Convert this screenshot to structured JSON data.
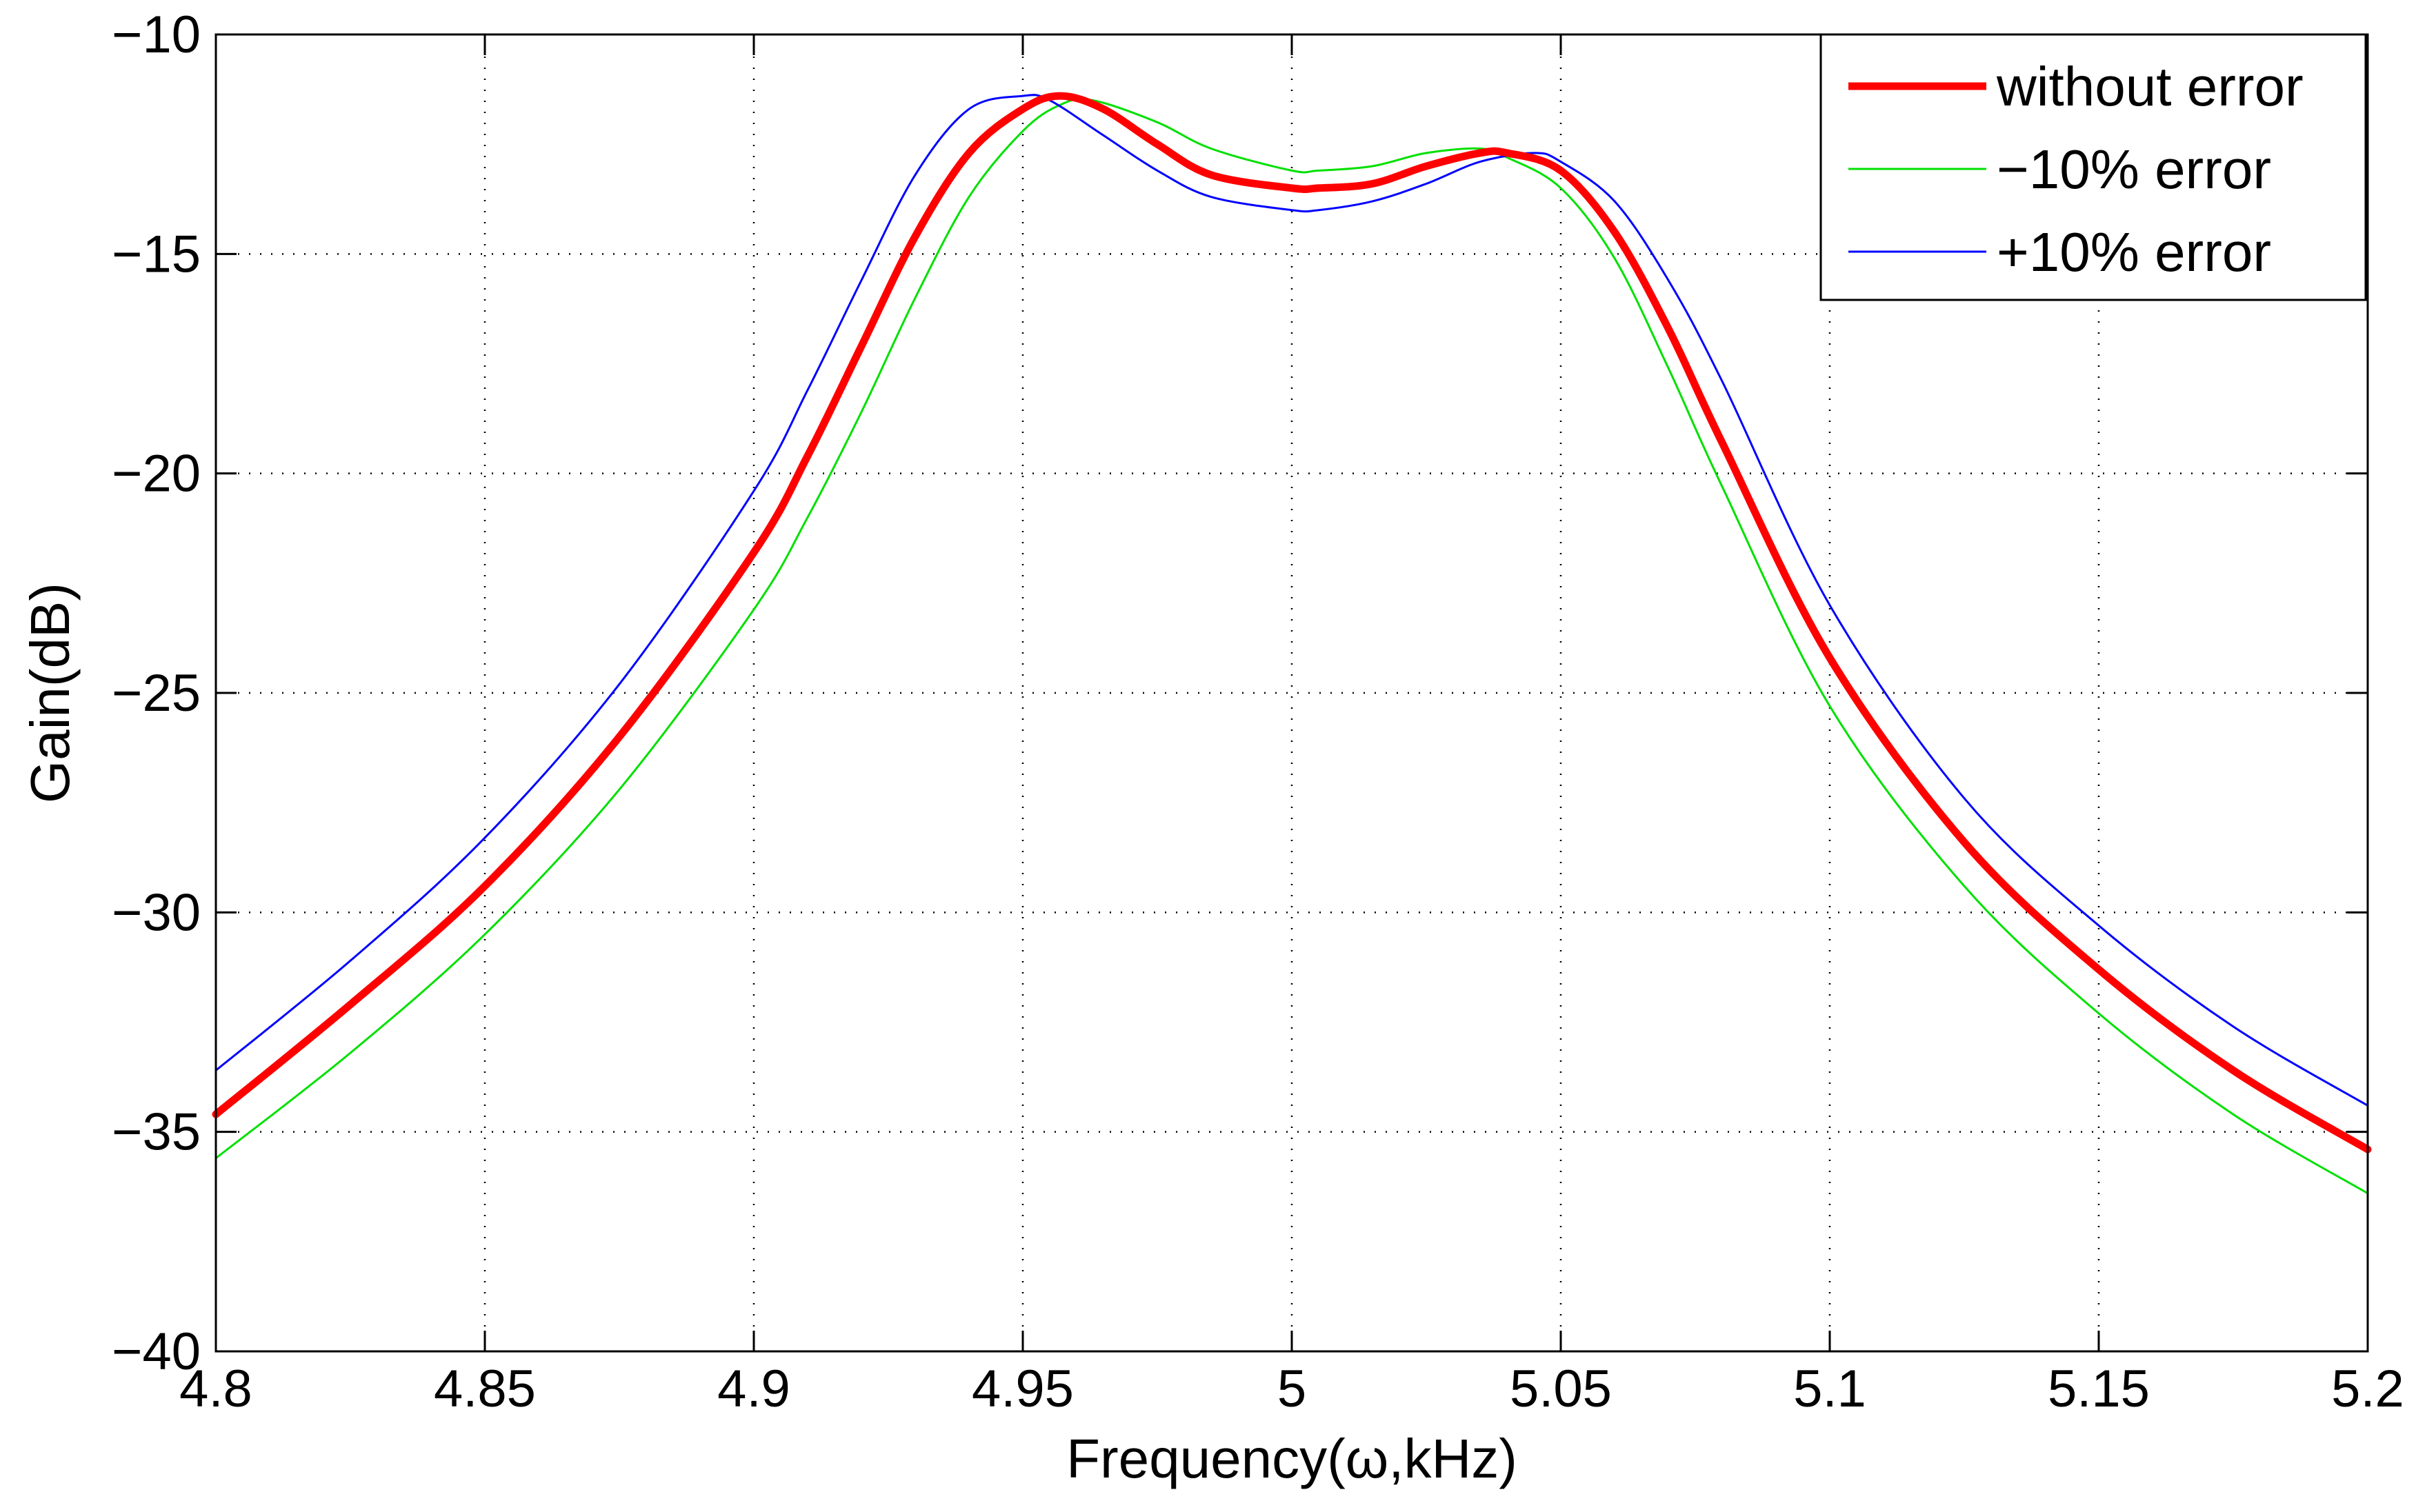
{
  "chart_data": {
    "type": "line",
    "title": "",
    "xlabel": "Frequency(ω,kHz)",
    "ylabel": "Gain(dB)",
    "xlim": [
      4.8,
      5.2
    ],
    "ylim": [
      -40,
      -10
    ],
    "xticks": [
      4.8,
      4.85,
      4.9,
      4.95,
      5.0,
      5.05,
      5.1,
      5.15,
      5.2
    ],
    "xtick_labels": [
      "4.8",
      "4.85",
      "4.9",
      "4.95",
      "5",
      "5.05",
      "5.1",
      "5.15",
      "5.2"
    ],
    "yticks": [
      -40,
      -35,
      -30,
      -25,
      -20,
      -15,
      -10
    ],
    "ytick_labels": [
      "−40",
      "−35",
      "−30",
      "−25",
      "−20",
      "−15",
      "−10"
    ],
    "grid": true,
    "legend_position": "top-right",
    "series": [
      {
        "name": "without error",
        "color": "#ff0000",
        "x": [
          4.8,
          4.825,
          4.85,
          4.875,
          4.9,
          4.91,
          4.92,
          4.93,
          4.94,
          4.95,
          4.957,
          4.965,
          4.975,
          4.985,
          5.0,
          5.005,
          5.015,
          5.025,
          5.035,
          5.04,
          5.05,
          5.06,
          5.07,
          5.08,
          5.1,
          5.125,
          5.15,
          5.175,
          5.2
        ],
        "y": [
          -34.6,
          -32.1,
          -29.4,
          -26.0,
          -21.8,
          -19.6,
          -17.1,
          -14.6,
          -12.7,
          -11.7,
          -11.4,
          -11.7,
          -12.5,
          -13.2,
          -13.5,
          -13.5,
          -13.4,
          -13.0,
          -12.7,
          -12.7,
          -13.1,
          -14.5,
          -16.7,
          -19.3,
          -24.2,
          -28.4,
          -31.3,
          -33.6,
          -35.4
        ]
      },
      {
        "name": "−10% error",
        "color": "#00e000",
        "x": [
          4.8,
          4.825,
          4.85,
          4.875,
          4.9,
          4.91,
          4.92,
          4.93,
          4.94,
          4.95,
          4.957,
          4.963,
          4.975,
          4.985,
          5.0,
          5.005,
          5.015,
          5.025,
          5.035,
          5.04,
          5.05,
          5.06,
          5.07,
          5.08,
          5.1,
          5.125,
          5.15,
          5.175,
          5.2
        ],
        "y": [
          -35.6,
          -33.2,
          -30.5,
          -27.2,
          -23.1,
          -21.0,
          -18.6,
          -16.0,
          -13.7,
          -12.2,
          -11.6,
          -11.5,
          -12.0,
          -12.6,
          -13.1,
          -13.1,
          -13.0,
          -12.7,
          -12.6,
          -12.8,
          -13.5,
          -15.1,
          -17.6,
          -20.3,
          -25.3,
          -29.4,
          -32.3,
          -34.6,
          -36.4
        ]
      },
      {
        "name": "+10% error",
        "color": "#0000ff",
        "x": [
          4.8,
          4.825,
          4.85,
          4.875,
          4.9,
          4.91,
          4.92,
          4.93,
          4.94,
          4.95,
          4.955,
          4.965,
          4.975,
          4.985,
          5.0,
          5.005,
          5.015,
          5.025,
          5.035,
          5.045,
          5.05,
          5.06,
          5.07,
          5.08,
          5.1,
          5.125,
          5.15,
          5.175,
          5.2
        ],
        "y": [
          -33.6,
          -31.1,
          -28.3,
          -24.8,
          -20.4,
          -18.1,
          -15.6,
          -13.2,
          -11.7,
          -11.4,
          -11.5,
          -12.3,
          -13.1,
          -13.7,
          -14.0,
          -14.0,
          -13.8,
          -13.4,
          -12.9,
          -12.7,
          -12.9,
          -13.8,
          -15.6,
          -17.9,
          -23.0,
          -27.4,
          -30.3,
          -32.6,
          -34.4
        ]
      }
    ]
  }
}
